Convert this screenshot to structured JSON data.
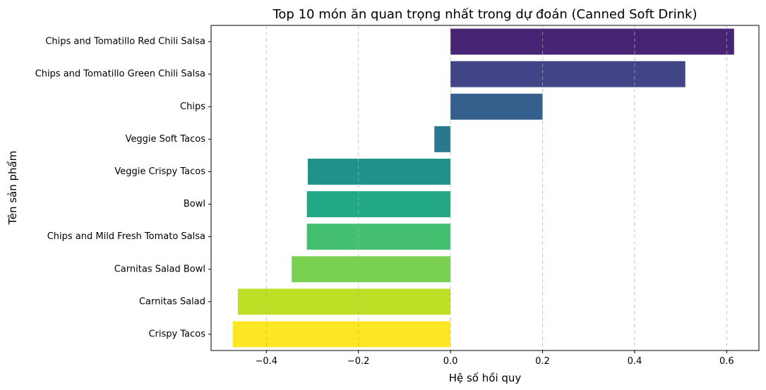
{
  "chart_data": {
    "type": "bar",
    "orientation": "horizontal",
    "title": "Top 10 món ăn quan trọng nhất trong dự đoán (Canned Soft Drink)",
    "xlabel": "Hệ số hồi quy",
    "ylabel": "Tên sản phẩm",
    "xlim": [
      -0.52,
      0.67
    ],
    "xticks": [
      -0.4,
      -0.2,
      0.0,
      0.2,
      0.4,
      0.6
    ],
    "xtick_labels": [
      "−0.4",
      "−0.2",
      "0.0",
      "0.2",
      "0.4",
      "0.6"
    ],
    "grid": "x-dashed",
    "categories": [
      "Chips and Tomatillo Red Chili Salsa",
      "Chips and Tomatillo Green Chili Salsa",
      "Chips",
      "Veggie Soft Tacos",
      "Veggie Crispy Tacos",
      "Bowl",
      "Chips and Mild Fresh Tomato Salsa",
      "Carnitas Salad Bowl",
      "Carnitas Salad",
      "Crispy Tacos"
    ],
    "values": [
      0.616,
      0.51,
      0.2,
      -0.035,
      -0.31,
      -0.312,
      -0.312,
      -0.345,
      -0.462,
      -0.473
    ],
    "colors": [
      "#482475",
      "#414487",
      "#355f8d",
      "#2a788e",
      "#21918c",
      "#22a884",
      "#44bf70",
      "#7ad151",
      "#bddf26",
      "#fde725"
    ]
  }
}
